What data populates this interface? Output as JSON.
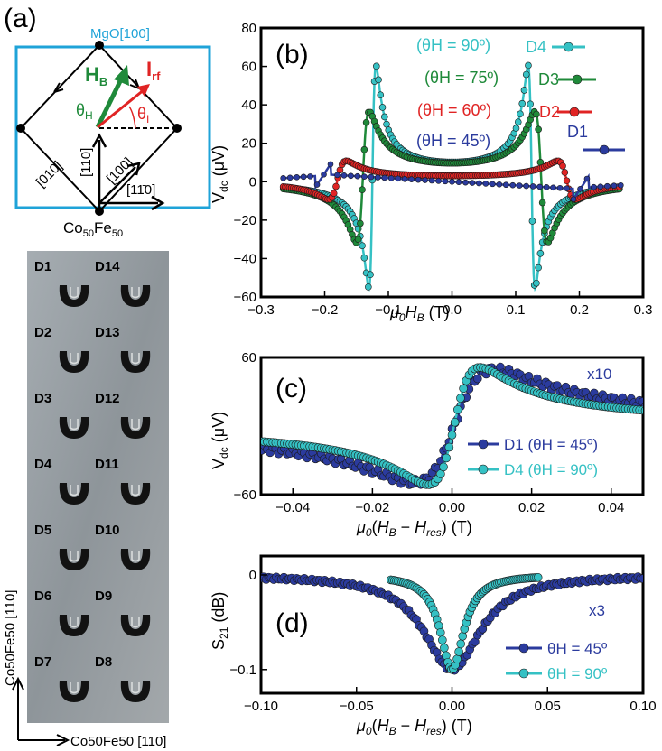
{
  "colors": {
    "cyan": "#35c1c4",
    "green": "#1f8a3a",
    "red": "#e02424",
    "blue": "#2b3b9e",
    "mgo": "#1fa3d8",
    "dark_cyan": "#27a5a8",
    "photo_bg": "#9aa0a4",
    "device": "#111111"
  },
  "panel_a": {
    "label": "(a)",
    "mgo_label": "MgO[100]",
    "hb_label": "H",
    "hb_sub": "B",
    "irf_label": "I",
    "irf_sub": "rf",
    "theta_h": "θ",
    "theta_h_sub": "H",
    "theta_i": "θ",
    "theta_i_sub": "I",
    "dir_110": "[110]",
    "dir_100": "[100]",
    "dir_010": "[010]",
    "dir_1m10": "[11̄0]",
    "material": "Co",
    "material_sub1": "50",
    "material_mid": "Fe",
    "material_sub2": "50"
  },
  "photo": {
    "devices_left": [
      "D1",
      "D2",
      "D3",
      "D4",
      "D5",
      "D6",
      "D7"
    ],
    "devices_right": [
      "D14",
      "D13",
      "D12",
      "D11",
      "D10",
      "D9",
      "D8"
    ],
    "vertical_axis": "Co50Fe50 [110]",
    "horizontal_axis": "Co50Fe50 [11̄0]"
  },
  "chart_data": [
    {
      "id": "b",
      "label": "(b)",
      "type": "line",
      "xlabel": "μ0HB (T)",
      "ylabel": "Vdc (μV)",
      "xlim": [
        -0.3,
        0.3
      ],
      "ylim": [
        -60,
        80
      ],
      "xticks": [
        "−0.3",
        "−0.2",
        "−0.1",
        "0.0",
        "0.1",
        "0.2",
        "0.3"
      ],
      "yticks": [
        "80",
        "60",
        "40",
        "20",
        "0",
        "−20",
        "−40",
        "−60"
      ],
      "series": [
        {
          "name": "D4",
          "theta": "(θH = 90º)",
          "color": "#35c1c4",
          "hres": 0.125,
          "amp": 58,
          "width": 0.0055,
          "bg": 0
        },
        {
          "name": "D3",
          "theta": "(θH = 75º)",
          "color": "#1f8a3a",
          "hres": 0.14,
          "amp": 34,
          "width": 0.01,
          "bg": 0
        },
        {
          "name": "D2",
          "theta": "(θH = 60º)",
          "color": "#e02424",
          "hres": 0.18,
          "amp": 10,
          "width": 0.014,
          "bg": 0
        },
        {
          "name": "D1",
          "theta": "(θH = 45º)",
          "color": "#2b3b9e",
          "hres": 0.21,
          "amp": 4.5,
          "width": 0.012,
          "bg": 0
        }
      ]
    },
    {
      "id": "c",
      "label": "(c)",
      "type": "line",
      "xlabel": "μ0(HB − Hres) (T)",
      "ylabel": "Vdc (μV)",
      "xlim": [
        -0.048,
        0.048
      ],
      "ylim": [
        -60,
        60
      ],
      "xticks": [
        "−0.04",
        "−0.02",
        "0.00",
        "0.02",
        "0.04"
      ],
      "yticks": [
        "60",
        "−60"
      ],
      "annotation": "x10",
      "series": [
        {
          "name": "D1 (θH = 45º)",
          "color": "#2b3b9e",
          "width": 0.01,
          "amp": 52
        },
        {
          "name": "D4 (θH = 90º)",
          "color": "#35c1c4",
          "width": 0.0065,
          "amp": 54
        }
      ]
    },
    {
      "id": "d",
      "label": "(d)",
      "type": "line",
      "xlabel": "μ0(HB − Hres) (T)",
      "ylabel": "S21 (dB)",
      "xlim": [
        -0.1,
        0.1
      ],
      "ylim": [
        -0.125,
        0.02
      ],
      "xticks": [
        "−0.10",
        "−0.05",
        "0.00",
        "0.05",
        "0.10"
      ],
      "yticks": [
        "0",
        "−0.1"
      ],
      "annotation": "x3",
      "series": [
        {
          "name": "θH = 45º",
          "color": "#2b3b9e",
          "width": 0.018,
          "depth": 0.1,
          "xrange": [
            -0.1,
            0.1
          ]
        },
        {
          "name": "θH = 90º",
          "color": "#35c1c4",
          "width": 0.0075,
          "depth": 0.1,
          "xrange": [
            -0.032,
            0.045
          ]
        }
      ]
    }
  ]
}
